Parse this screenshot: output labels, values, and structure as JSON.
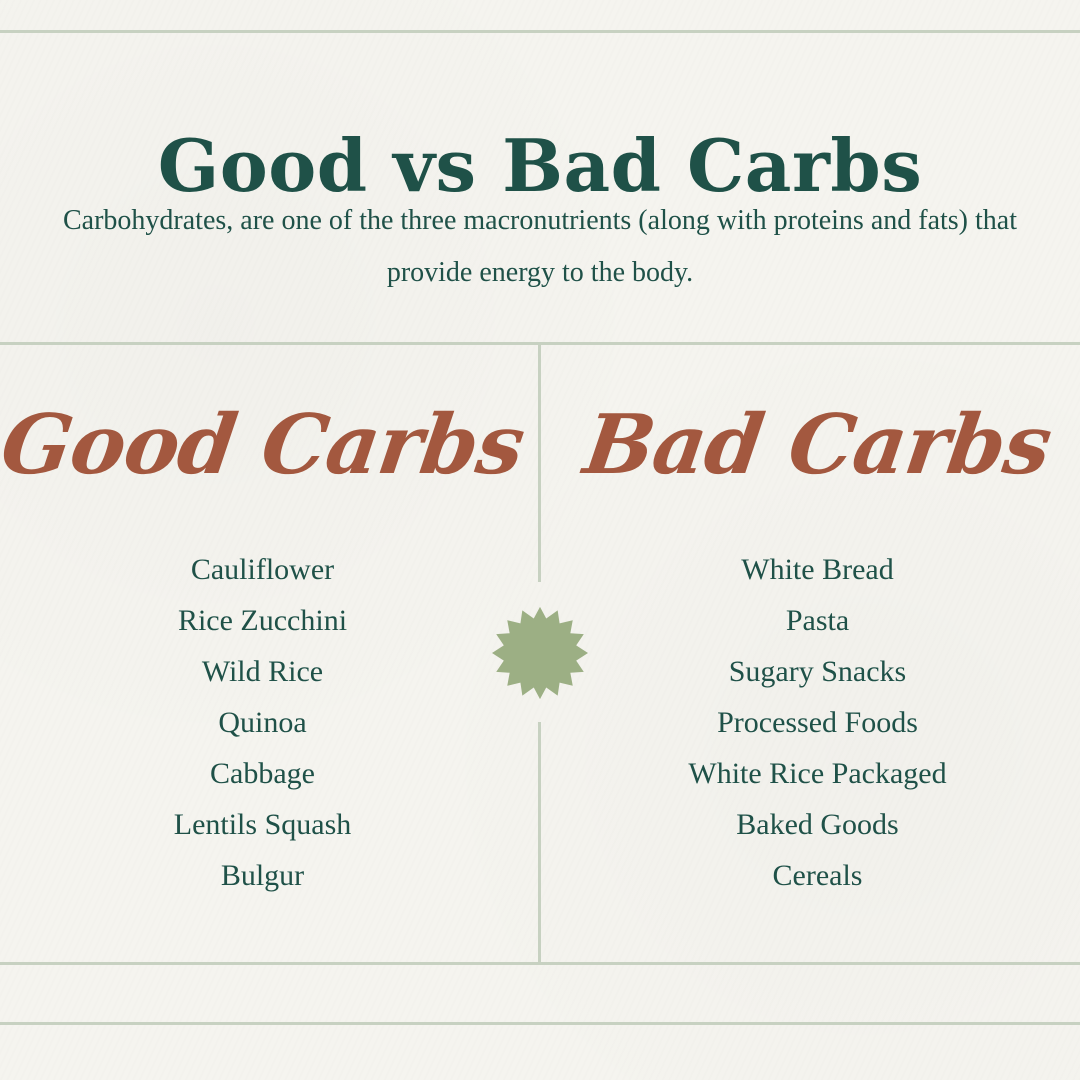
{
  "header": {
    "title": "Good vs Bad Carbs",
    "intro": "Carbohydrates, are one of the three macronutrients (along with proteins and fats) that provide energy to the body."
  },
  "good_carbs": {
    "heading": "Good Carbs",
    "items": [
      "Cauliflower",
      "Rice Zucchini",
      "Wild Rice",
      "Quinoa",
      "Cabbage",
      "Lentils Squash",
      "Bulgur"
    ]
  },
  "bad_carbs": {
    "heading": "Bad Carbs",
    "items": [
      "White Bread",
      "Pasta",
      "Sugary Snacks",
      "Processed Foods",
      "White Rice Packaged",
      "Baked Goods",
      "Cereals"
    ]
  },
  "colors": {
    "background": "#f5f4ef",
    "title_green": "#1f5148",
    "script_rust": "#a3583f",
    "rule_sage": "#c7d1c1",
    "star_sage": "#9caf84"
  },
  "decorations": {
    "center_icon": "starburst-icon"
  }
}
